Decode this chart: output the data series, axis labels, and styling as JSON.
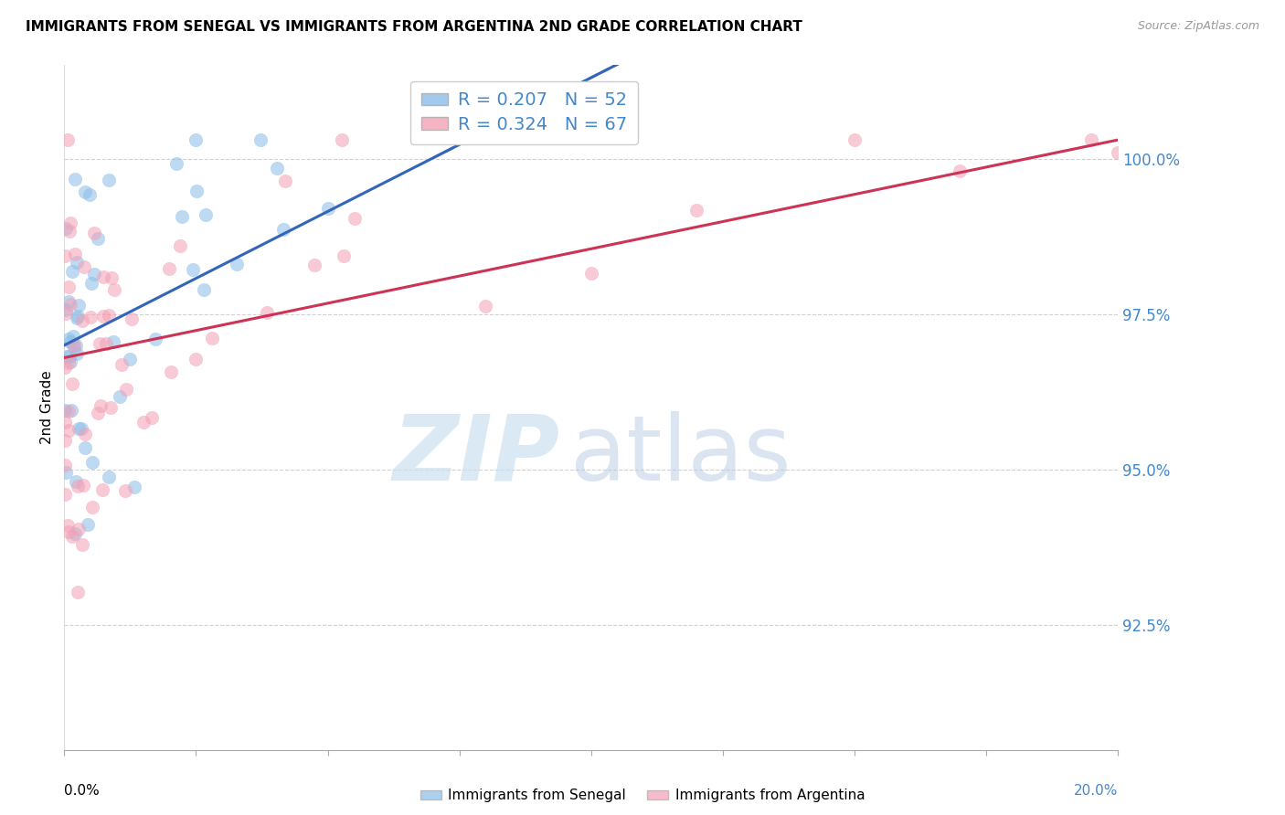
{
  "title": "IMMIGRANTS FROM SENEGAL VS IMMIGRANTS FROM ARGENTINA 2ND GRADE CORRELATION CHART",
  "source": "Source: ZipAtlas.com",
  "ylabel": "2nd Grade",
  "y_ticks": [
    92.5,
    95.0,
    97.5,
    100.0
  ],
  "y_tick_labels": [
    "92.5%",
    "95.0%",
    "97.5%",
    "100.0%"
  ],
  "xlim": [
    0.0,
    20.0
  ],
  "ylim": [
    90.5,
    101.5
  ],
  "legend_label_blue": "Immigrants from Senegal",
  "legend_label_pink": "Immigrants from Argentina",
  "R_blue": 0.207,
  "N_blue": 52,
  "R_pink": 0.324,
  "N_pink": 67,
  "blue_color": "#8abde8",
  "pink_color": "#f4a0b5",
  "trend_blue_color": "#3366bb",
  "trend_pink_color": "#cc3355",
  "tick_color": "#4488cc",
  "grid_color": "#cccccc",
  "title_fontsize": 11,
  "source_fontsize": 9,
  "ytick_fontsize": 12,
  "watermark_zip_color": "#cce0f0",
  "watermark_atlas_color": "#b8cce4"
}
